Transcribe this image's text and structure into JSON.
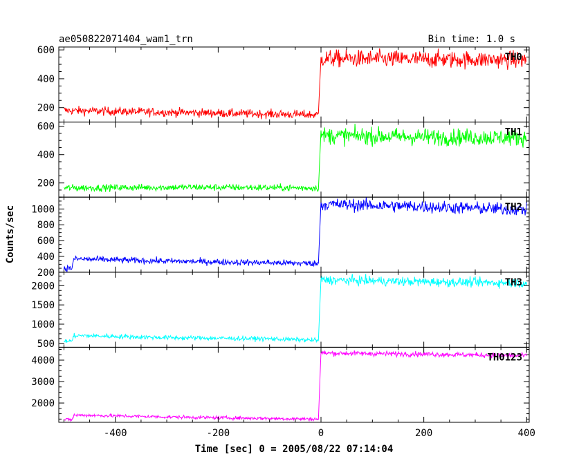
{
  "header": {
    "title": "ae050822071404_wam1_trn",
    "bin_time": "Bin time: 1.0 s"
  },
  "chart_data": {
    "type": "line",
    "xlabel": "Time [sec] 0 = 2005/08/22 07:14:04",
    "ylabel": "Counts/sec",
    "xlim": [
      -510,
      405
    ],
    "x_ticks": [
      -400,
      -200,
      0,
      200,
      400
    ],
    "grid": false,
    "panels": [
      {
        "name": "TH0",
        "color": "#ff0000",
        "ylim": [
          100,
          620
        ],
        "y_ticks": [
          200,
          400,
          600
        ],
        "segments": [
          {
            "x": [
              -500,
              -250,
              -5
            ],
            "y": [
              180,
              165,
              150
            ],
            "noise": 15
          },
          {
            "x": [
              0,
              200,
              400
            ],
            "y": [
              540,
              535,
              530
            ],
            "noise": 30
          }
        ]
      },
      {
        "name": "TH1",
        "color": "#00ff00",
        "ylim": [
          100,
          630
        ],
        "y_ticks": [
          200,
          400,
          600
        ],
        "segments": [
          {
            "x": [
              -500,
              -250,
              -5
            ],
            "y": [
              165,
              170,
              165
            ],
            "noise": 12
          },
          {
            "x": [
              0,
              200,
              400
            ],
            "y": [
              535,
              525,
              520
            ],
            "noise": 30
          }
        ]
      },
      {
        "name": "TH2",
        "color": "#0000ff",
        "ylim": [
          200,
          1150
        ],
        "y_ticks": [
          200,
          400,
          600,
          800,
          1000
        ],
        "segments": [
          {
            "x": [
              -500,
              -485,
              -480,
              -460,
              -300,
              -100,
              -5
            ],
            "y": [
              250,
              250,
              370,
              365,
              340,
              320,
              310
            ],
            "noise": 20
          },
          {
            "x": [
              0,
              200,
              400
            ],
            "y": [
              1060,
              1030,
              990
            ],
            "noise": 40
          }
        ]
      },
      {
        "name": "TH3",
        "color": "#00ffff",
        "ylim": [
          400,
          2350
        ],
        "y_ticks": [
          500,
          1000,
          1500,
          2000
        ],
        "segments": [
          {
            "x": [
              -500,
              -485,
              -480,
              -460,
              -300,
              -100,
              -5
            ],
            "y": [
              560,
              560,
              700,
              700,
              650,
              620,
              580
            ],
            "noise": 30
          },
          {
            "x": [
              0,
              200,
              400
            ],
            "y": [
              2150,
              2100,
              2070
            ],
            "noise": 60
          }
        ]
      },
      {
        "name": "TH0123",
        "color": "#ff00ff",
        "ylim": [
          1100,
          4600
        ],
        "y_ticks": [
          2000,
          3000,
          4000
        ],
        "segments": [
          {
            "x": [
              -500,
              -485,
              -480,
              -460,
              -300,
              -100,
              -5
            ],
            "y": [
              1220,
              1220,
              1430,
              1430,
              1350,
              1280,
              1250
            ],
            "noise": 40
          },
          {
            "x": [
              0,
              200,
              400
            ],
            "y": [
              4330,
              4280,
              4200
            ],
            "noise": 60
          }
        ]
      }
    ]
  }
}
